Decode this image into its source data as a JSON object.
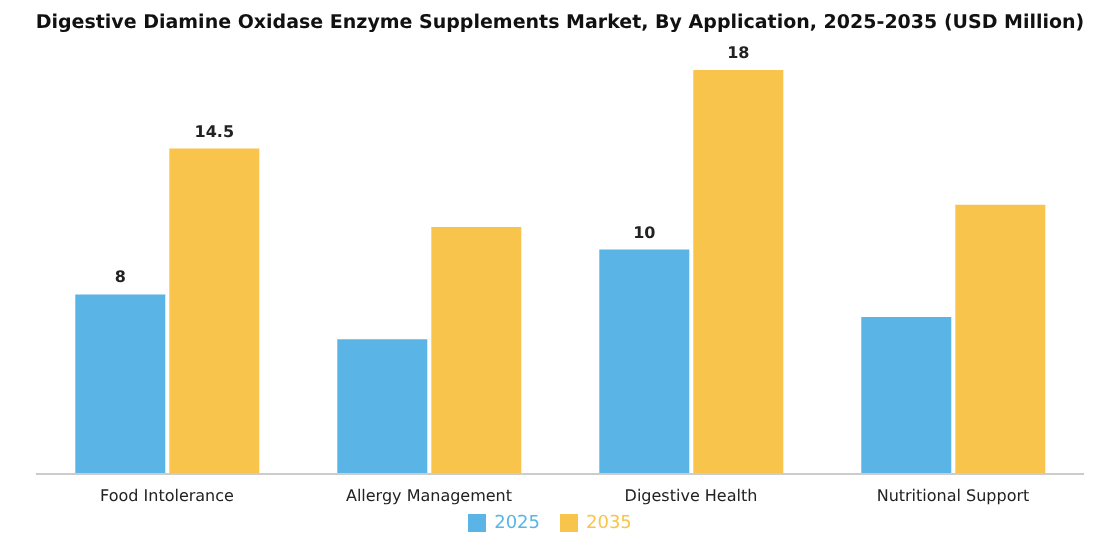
{
  "chart_data": {
    "type": "bar",
    "title": "Digestive Diamine Oxidase Enzyme Supplements Market, By Application, 2025-2035 (USD Million)",
    "categories": [
      "Food Intolerance",
      "Allergy Management",
      "Digestive Health",
      "Nutritional Support"
    ],
    "series": [
      {
        "name": "2025",
        "color": "#5ab4e6",
        "values": [
          8,
          6,
          10,
          7
        ],
        "value_labels": [
          "8",
          null,
          "10",
          null
        ]
      },
      {
        "name": "2035",
        "color": "#f9c44b",
        "values": [
          14.5,
          11,
          18,
          12
        ],
        "value_labels": [
          "14.5",
          null,
          "18",
          null
        ]
      }
    ],
    "grid": false,
    "legend": "bottom"
  }
}
